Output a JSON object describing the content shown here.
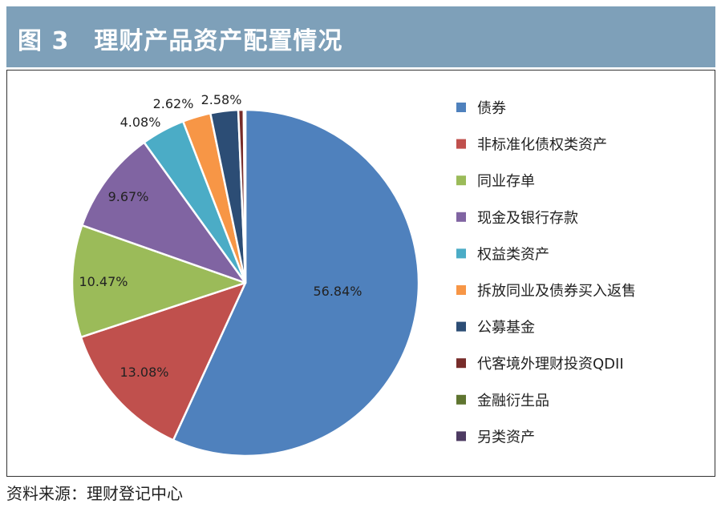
{
  "header": {
    "title": "图 3　理财产品资产配置情况"
  },
  "source": "资料来源：理财登记中心",
  "chart_data": {
    "type": "pie",
    "title": "图 3　理财产品资产配置情况",
    "legend_position": "right",
    "slices": [
      {
        "label": "债券",
        "value": 56.84,
        "display": "56.84%",
        "color": "#4f81bd"
      },
      {
        "label": "非标准化债权类资产",
        "value": 13.08,
        "display": "13.08%",
        "color": "#c0504d"
      },
      {
        "label": "同业存单",
        "value": 10.47,
        "display": "10.47%",
        "color": "#9bbb59"
      },
      {
        "label": "现金及银行存款",
        "value": 9.67,
        "display": "9.67%",
        "color": "#8064a2"
      },
      {
        "label": "权益类资产",
        "value": 4.08,
        "display": "4.08%",
        "color": "#4bacc6"
      },
      {
        "label": "拆放同业及债券买入返售",
        "value": 2.62,
        "display": "2.62%",
        "color": "#f79646"
      },
      {
        "label": "公募基金",
        "value": 2.58,
        "display": "2.58%",
        "color": "#2c4d75"
      },
      {
        "label": "代客境外理财投资QDII",
        "value": 0.5,
        "display": "",
        "color": "#772c2a"
      },
      {
        "label": "金融衍生品",
        "value": 0.1,
        "display": "",
        "color": "#5f7530"
      },
      {
        "label": "另类资产",
        "value": 0.06,
        "display": "",
        "color": "#4d3b62"
      }
    ]
  }
}
